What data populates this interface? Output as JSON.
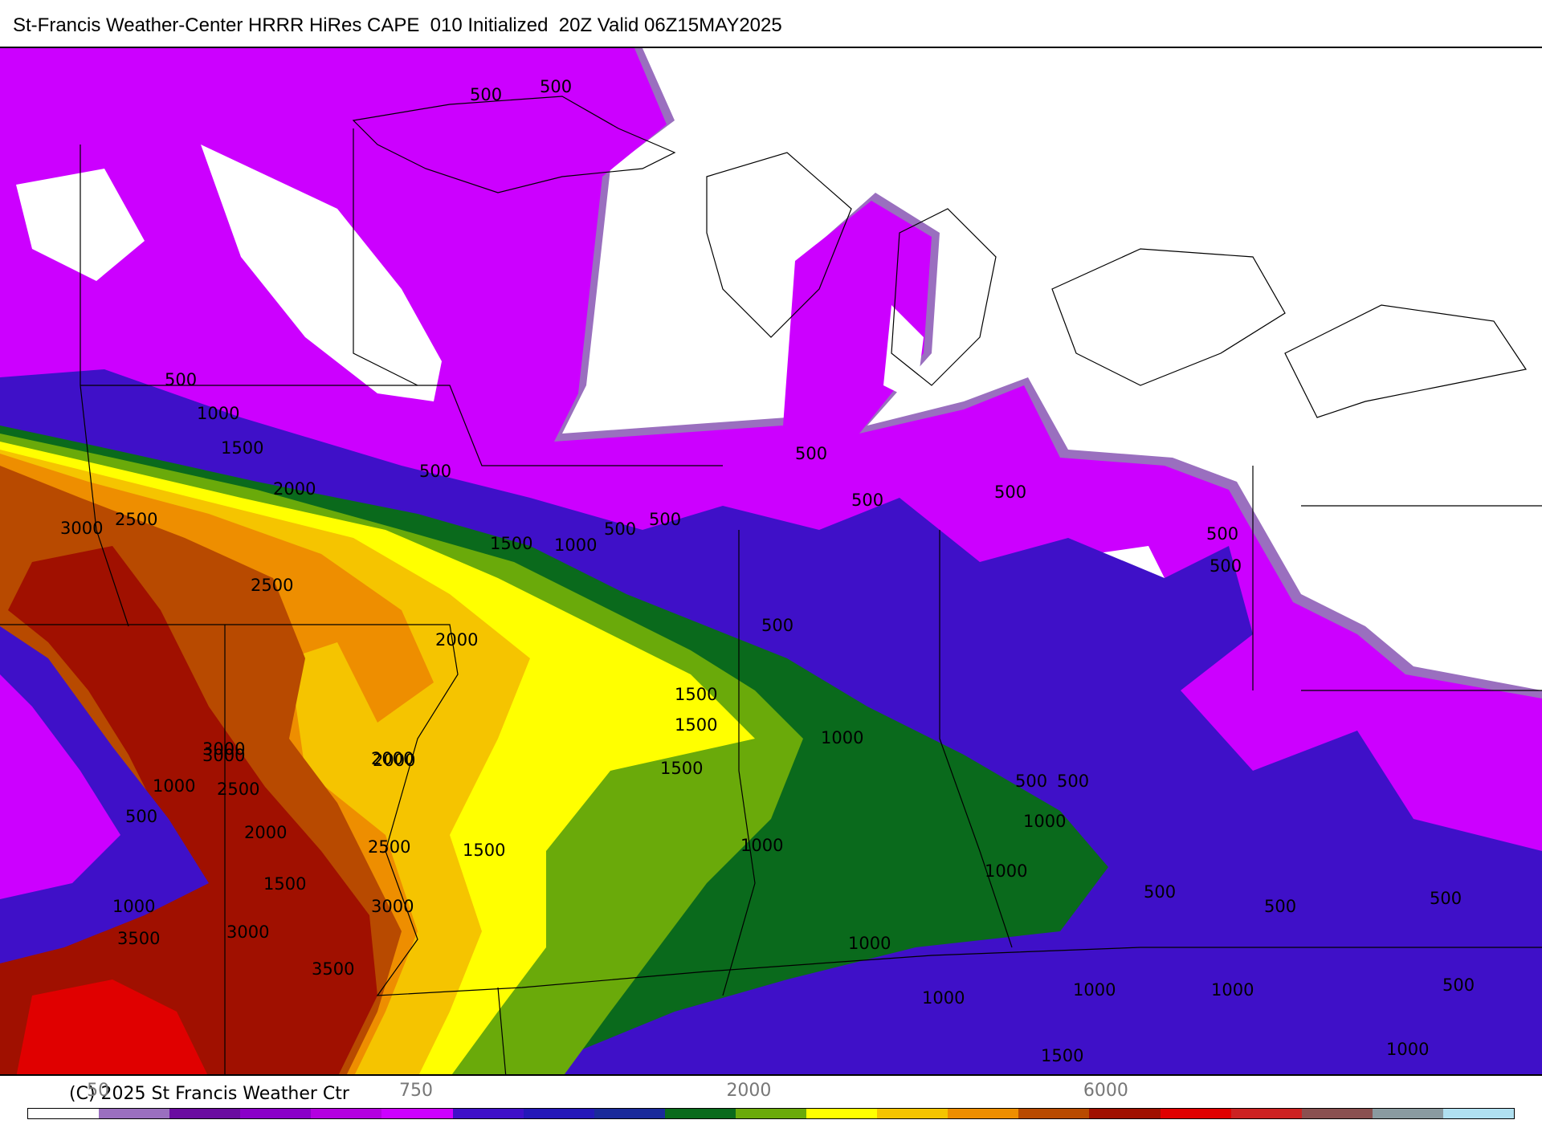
{
  "title": "St-Francis Weather-Center HRRR HiRes CAPE  010 Initialized  20Z Valid 06Z15MAY2025",
  "copyright": "(C) 2025 St Francis Weather Ctr",
  "colorbar": {
    "colors": [
      "#ffffff",
      "#9a6fbf",
      "#6a0ca0",
      "#8a00c8",
      "#b300e0",
      "#cc00ff",
      "#3f10c8",
      "#2418b8",
      "#1a2a9a",
      "#0a6a1c",
      "#6aaa0a",
      "#ffff00",
      "#f5c400",
      "#ee8e00",
      "#b84a00",
      "#a01000",
      "#e00000",
      "#cc2222",
      "#8a5050",
      "#8a9aa0",
      "#b0e0f0"
    ],
    "tick_labels": [
      "50",
      "750",
      "2000",
      "6000"
    ],
    "tick_fracs": [
      0.04,
      0.25,
      0.47,
      0.71
    ]
  },
  "contour_labels": [
    "500",
    "500",
    "500",
    "1000",
    "1500",
    "2000",
    "2500",
    "3000",
    "2500",
    "500",
    "1500",
    "1000",
    "500",
    "500",
    "2000",
    "1500",
    "1500",
    "500",
    "1000",
    "500",
    "500",
    "500",
    "500",
    "500",
    "1500",
    "2000",
    "2500",
    "3000",
    "1000",
    "500",
    "2000",
    "1500",
    "1000",
    "3000",
    "3500",
    "3000",
    "3500",
    "2000",
    "1500",
    "3000",
    "2500",
    "1000",
    "500",
    "1000",
    "1000",
    "1000",
    "500",
    "500",
    "500",
    "500",
    "1000",
    "1000",
    "1000",
    "1500",
    "500",
    "1000"
  ]
}
